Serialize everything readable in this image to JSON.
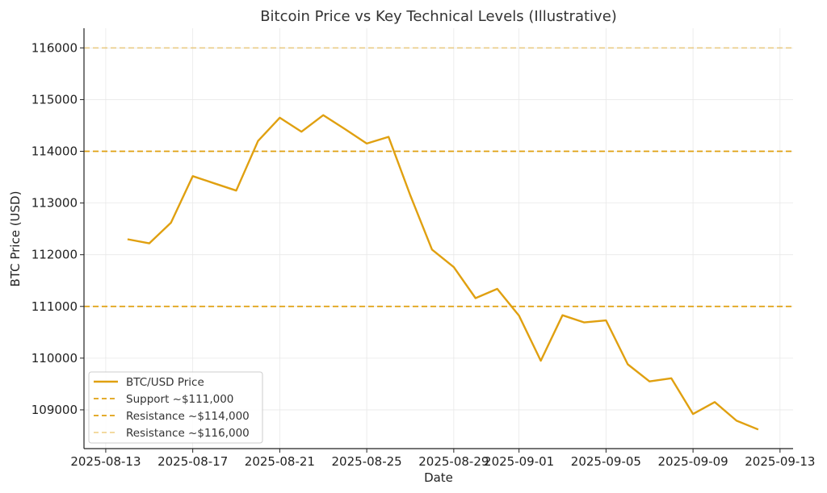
{
  "chart_data": {
    "type": "line",
    "title": "Bitcoin Price vs Key Technical Levels (Illustrative)",
    "xlabel": "Date",
    "ylabel": "BTC Price (USD)",
    "x_ticks": [
      "2025-08-13",
      "2025-08-17",
      "2025-08-21",
      "2025-08-25",
      "2025-08-29",
      "2025-09-01",
      "2025-09-05",
      "2025-09-09",
      "2025-09-13"
    ],
    "y_ticks": [
      109000,
      110000,
      111000,
      112000,
      113000,
      114000,
      115000,
      116000
    ],
    "xlim": [
      "2025-08-12",
      "2025-09-13.6"
    ],
    "ylim": [
      108250,
      116380
    ],
    "grid": true,
    "legend_position": "bottom-left",
    "series": [
      {
        "name": "BTC/USD Price",
        "color": "#e0a010",
        "x": [
          "2025-08-14",
          "2025-08-15",
          "2025-08-16",
          "2025-08-17",
          "2025-08-18",
          "2025-08-19",
          "2025-08-20",
          "2025-08-21",
          "2025-08-22",
          "2025-08-23",
          "2025-08-24",
          "2025-08-25",
          "2025-08-26",
          "2025-08-27",
          "2025-08-28",
          "2025-08-29",
          "2025-08-30",
          "2025-08-31",
          "2025-09-01",
          "2025-09-02",
          "2025-09-03",
          "2025-09-04",
          "2025-09-05",
          "2025-09-06",
          "2025-09-07",
          "2025-09-08",
          "2025-09-09",
          "2025-09-10",
          "2025-09-11",
          "2025-09-12"
        ],
        "y": [
          112300,
          112220,
          112620,
          113520,
          113380,
          113240,
          114200,
          114650,
          114380,
          114700,
          114430,
          114150,
          114280,
          113150,
          112100,
          111760,
          111160,
          111340,
          110820,
          109950,
          110830,
          110690,
          110730,
          109880,
          109550,
          109610,
          108920,
          109150,
          108790,
          108620
        ]
      }
    ],
    "reference_lines": [
      {
        "name": "Support ~$111,000",
        "y": 111000,
        "color": "#e0a010",
        "opacity": 1.0
      },
      {
        "name": "Resistance ~$114,000",
        "y": 114000,
        "color": "#e0a010",
        "opacity": 1.0
      },
      {
        "name": "Resistance ~$116,000",
        "y": 116000,
        "color": "#e0a010",
        "opacity": 0.45
      }
    ]
  }
}
